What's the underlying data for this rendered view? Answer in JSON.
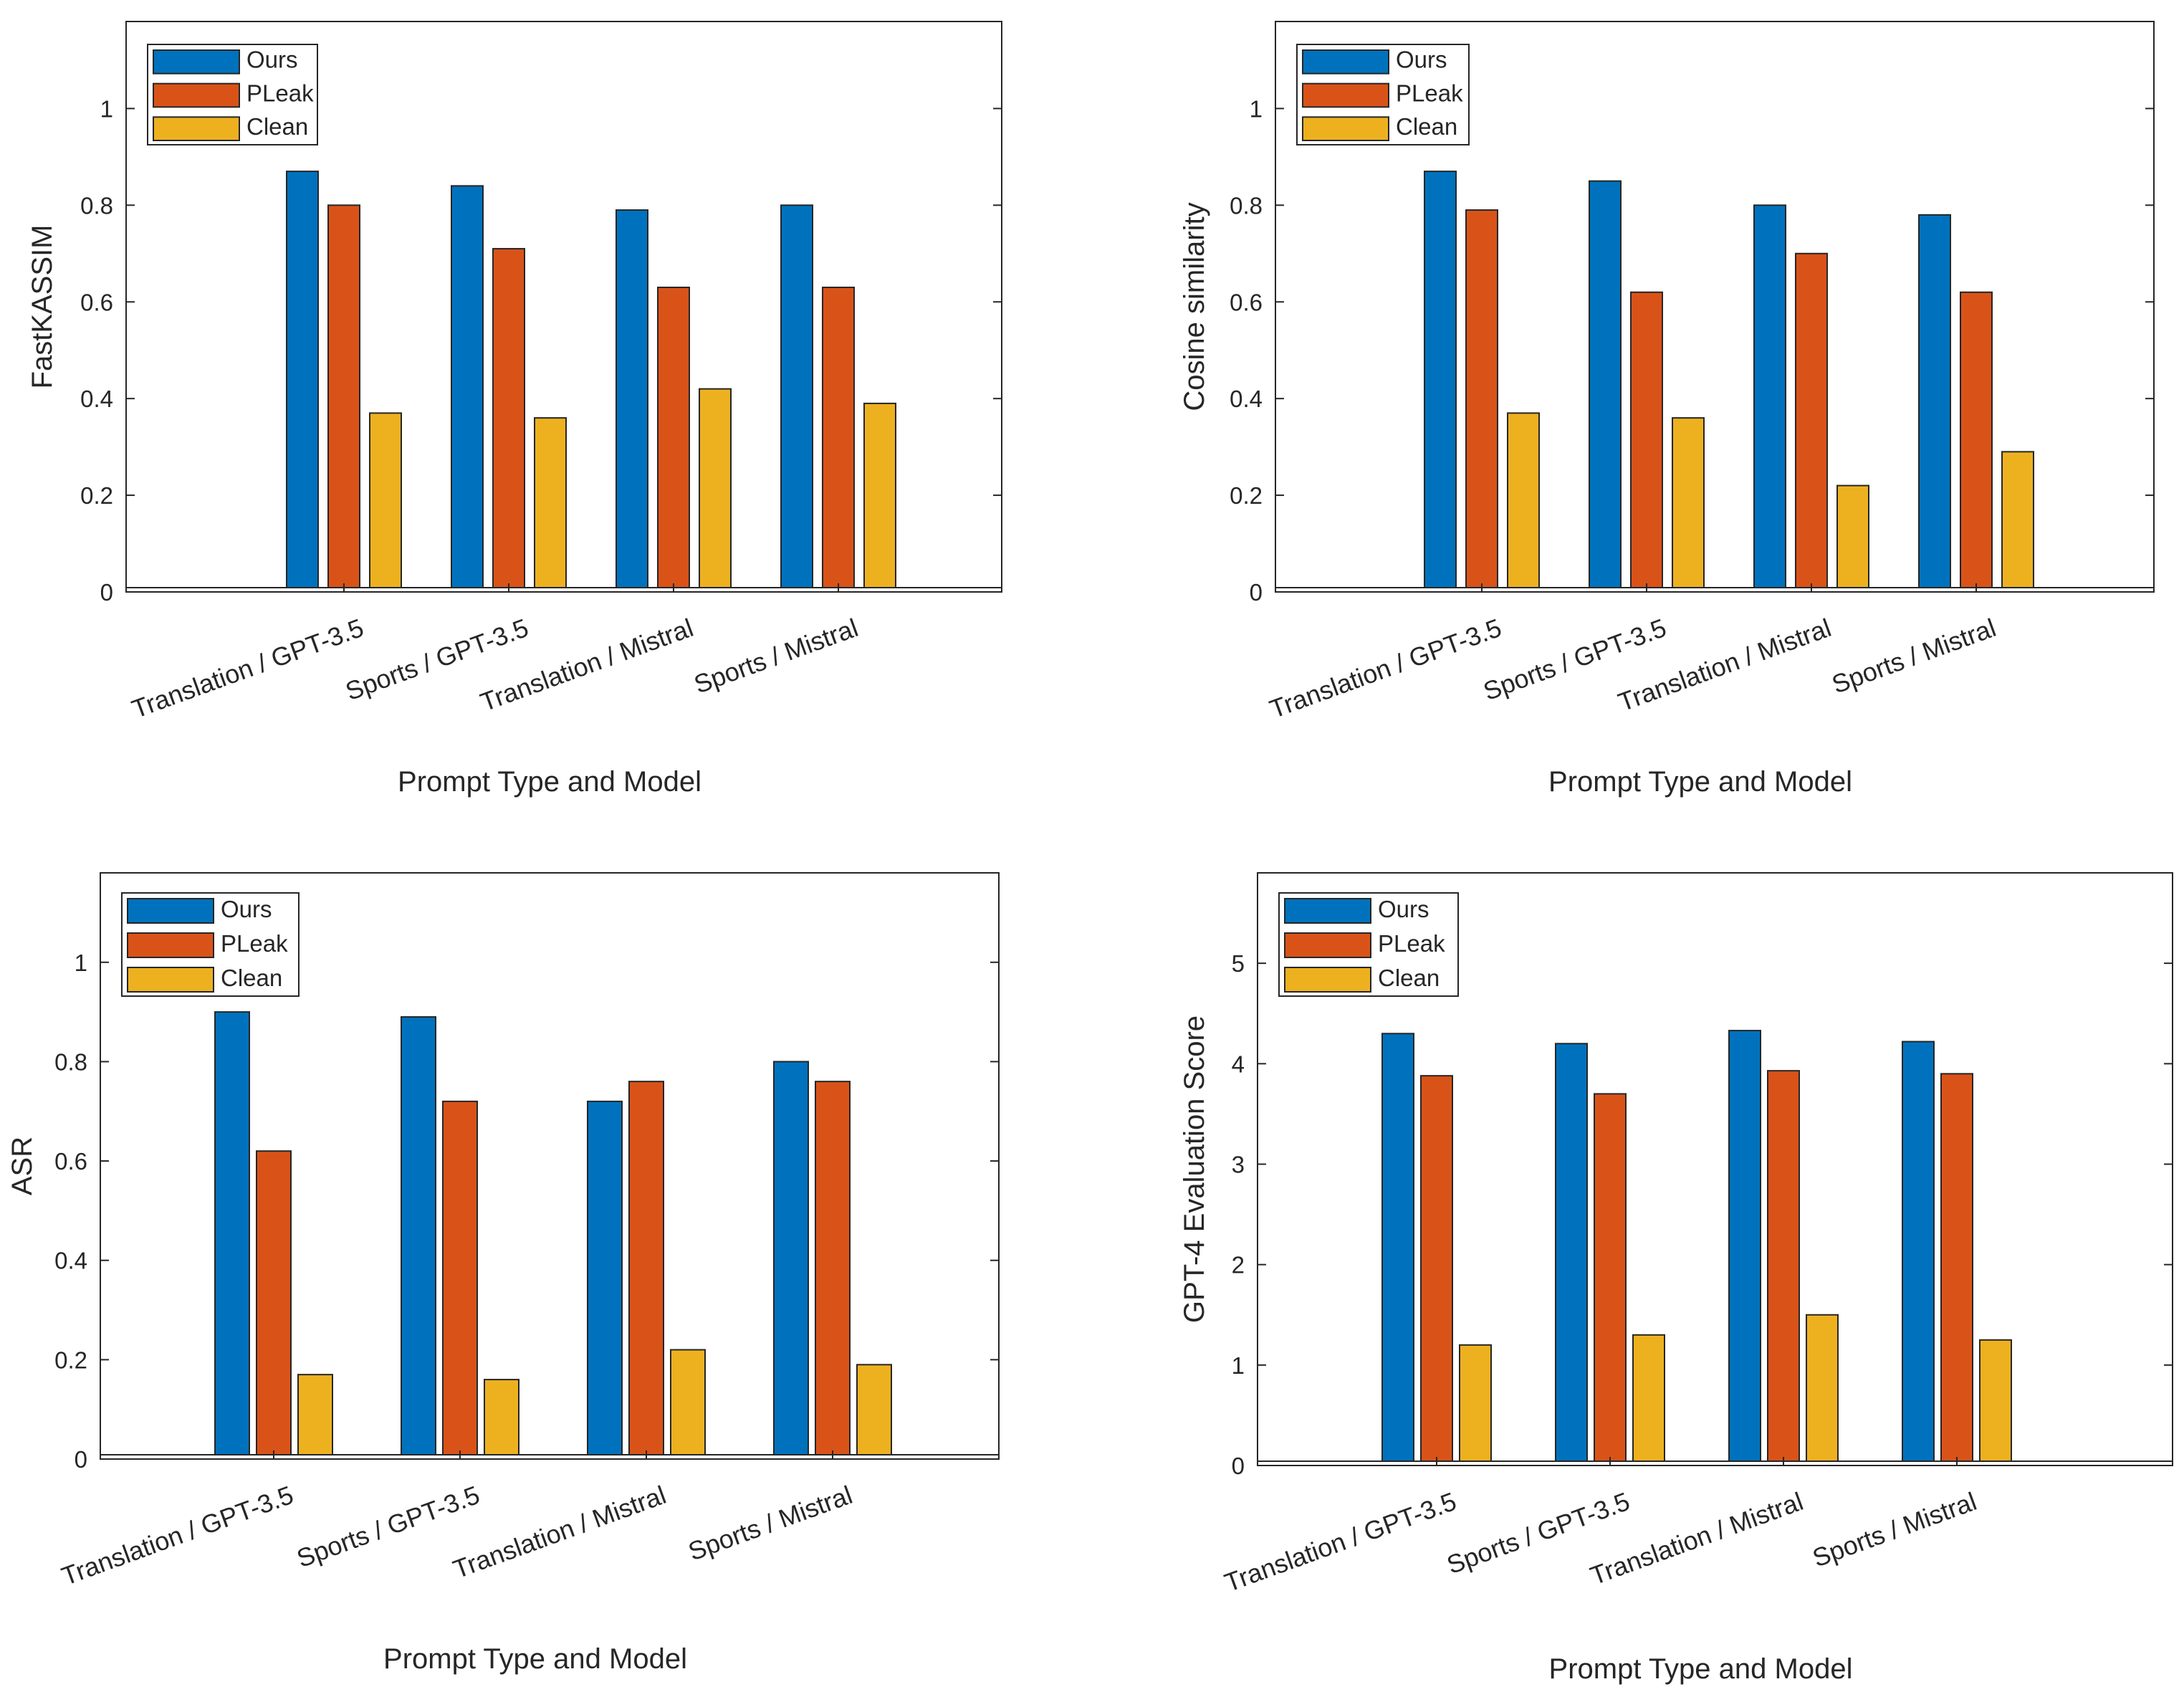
{
  "colors": {
    "ours": "#0072BD",
    "pleak": "#D95319",
    "clean": "#EDB120"
  },
  "chart_data": [
    {
      "type": "bar",
      "title": "",
      "xlabel": "Prompt Type and Model",
      "ylabel": "FastKASSIM",
      "categories": [
        "Translation / GPT-3.5",
        "Sports / GPT-3.5",
        "Translation / Mistral",
        "Sports / Mistral"
      ],
      "series": [
        {
          "name": "Ours",
          "values": [
            0.87,
            0.84,
            0.79,
            0.8
          ]
        },
        {
          "name": "PLeak",
          "values": [
            0.8,
            0.71,
            0.63,
            0.63
          ]
        },
        {
          "name": "Clean",
          "values": [
            0.37,
            0.36,
            0.42,
            0.39
          ]
        }
      ],
      "ylim": [
        0,
        1.18
      ],
      "yticks": [
        "0",
        "0.2",
        "0.4",
        "0.6",
        "0.8",
        "1"
      ],
      "ytick_values": [
        0,
        0.2,
        0.4,
        0.6,
        0.8,
        1
      ],
      "legend": "top-left",
      "grid": false
    },
    {
      "type": "bar",
      "title": "",
      "xlabel": "Prompt Type and Model",
      "ylabel": "Cosine similarity",
      "categories": [
        "Translation / GPT-3.5",
        "Sports / GPT-3.5",
        "Translation / Mistral",
        "Sports / Mistral"
      ],
      "series": [
        {
          "name": "Ours",
          "values": [
            0.87,
            0.85,
            0.8,
            0.78
          ]
        },
        {
          "name": "PLeak",
          "values": [
            0.79,
            0.62,
            0.7,
            0.62
          ]
        },
        {
          "name": "Clean",
          "values": [
            0.37,
            0.36,
            0.22,
            0.29
          ]
        }
      ],
      "ylim": [
        0,
        1.18
      ],
      "yticks": [
        "0",
        "0.2",
        "0.4",
        "0.6",
        "0.8",
        "1"
      ],
      "ytick_values": [
        0,
        0.2,
        0.4,
        0.6,
        0.8,
        1
      ],
      "legend": "top-left",
      "grid": false
    },
    {
      "type": "bar",
      "title": "",
      "xlabel": "Prompt Type and Model",
      "ylabel": "ASR",
      "categories": [
        "Translation / GPT-3.5",
        "Sports / GPT-3.5",
        "Translation / Mistral",
        "Sports / Mistral"
      ],
      "series": [
        {
          "name": "Ours",
          "values": [
            0.9,
            0.89,
            0.72,
            0.8
          ]
        },
        {
          "name": "PLeak",
          "values": [
            0.62,
            0.72,
            0.76,
            0.76
          ]
        },
        {
          "name": "Clean",
          "values": [
            0.17,
            0.16,
            0.22,
            0.19
          ]
        }
      ],
      "ylim": [
        0,
        1.18
      ],
      "yticks": [
        "0",
        "0.2",
        "0.4",
        "0.6",
        "0.8",
        "1"
      ],
      "ytick_values": [
        0,
        0.2,
        0.4,
        0.6,
        0.8,
        1
      ],
      "legend": "top-left",
      "grid": false
    },
    {
      "type": "bar",
      "title": "",
      "xlabel": "Prompt Type and Model",
      "ylabel": "GPT-4 Evaluation Score",
      "categories": [
        "Translation / GPT-3.5",
        "Sports / GPT-3.5",
        "Translation / Mistral",
        "Sports / Mistral"
      ],
      "series": [
        {
          "name": "Ours",
          "values": [
            4.3,
            4.2,
            4.33,
            4.22
          ]
        },
        {
          "name": "PLeak",
          "values": [
            3.88,
            3.7,
            3.93,
            3.9
          ]
        },
        {
          "name": "Clean",
          "values": [
            1.2,
            1.3,
            1.5,
            1.25
          ]
        }
      ],
      "ylim": [
        0,
        5.9
      ],
      "yticks": [
        "0",
        "1",
        "2",
        "3",
        "4",
        "5"
      ],
      "ytick_values": [
        0,
        1,
        2,
        3,
        4,
        5
      ],
      "legend": "top-left",
      "grid": false
    }
  ]
}
